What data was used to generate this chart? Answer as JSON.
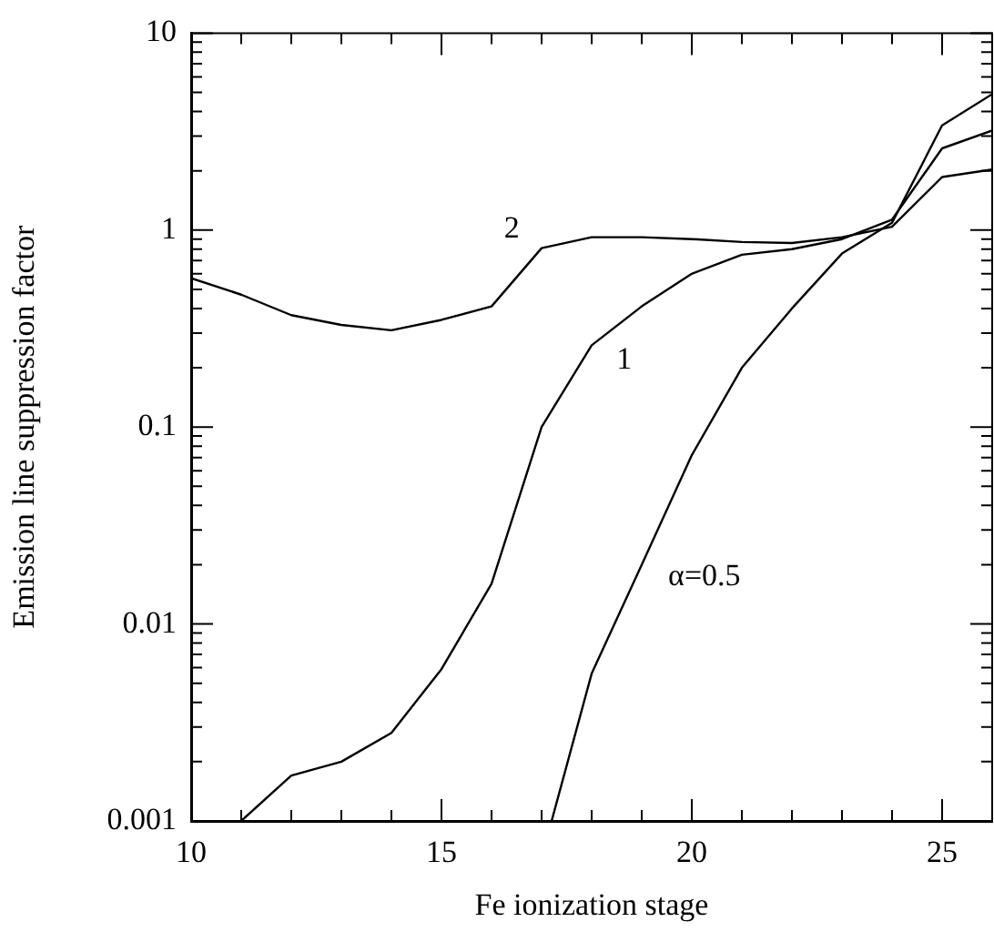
{
  "chart_data": {
    "type": "line",
    "xlabel": "Fe ionization stage",
    "ylabel": "Emission line suppression factor",
    "log": "y",
    "grid": false,
    "legend": false,
    "marker": "none",
    "line_style": "solid",
    "xlim": [
      10,
      26
    ],
    "ylim": [
      0.001,
      10
    ],
    "xticks": [
      10,
      {
        "value": 11,
        "label": null
      },
      {
        "value": 12,
        "label": null
      },
      {
        "value": 13,
        "label": null
      },
      {
        "value": 14,
        "label": null
      },
      15,
      {
        "value": 16,
        "label": null
      },
      {
        "value": 17,
        "label": null
      },
      {
        "value": 18,
        "label": null
      },
      {
        "value": 19,
        "label": null
      },
      20,
      {
        "value": 21,
        "label": null
      },
      {
        "value": 22,
        "label": null
      },
      {
        "value": 23,
        "label": null
      },
      {
        "value": 24,
        "label": null
      },
      25
    ],
    "yticks": [
      0.001,
      {
        "value": 0.002,
        "label": null
      },
      {
        "value": 0.003,
        "label": null
      },
      {
        "value": 0.004,
        "label": null
      },
      {
        "value": 0.005,
        "label": null
      },
      {
        "value": 0.006,
        "label": null
      },
      {
        "value": 0.007,
        "label": null
      },
      {
        "value": 0.008,
        "label": null
      },
      {
        "value": 0.009,
        "label": null
      },
      0.01,
      {
        "value": 0.02,
        "label": null
      },
      {
        "value": 0.03,
        "label": null
      },
      {
        "value": 0.04,
        "label": null
      },
      {
        "value": 0.05,
        "label": null
      },
      {
        "value": 0.06,
        "label": null
      },
      {
        "value": 0.07,
        "label": null
      },
      {
        "value": 0.08,
        "label": null
      },
      {
        "value": 0.09,
        "label": null
      },
      0.1,
      {
        "value": 0.2,
        "label": null
      },
      {
        "value": 0.3,
        "label": null
      },
      {
        "value": 0.4,
        "label": null
      },
      {
        "value": 0.5,
        "label": null
      },
      {
        "value": 0.6,
        "label": null
      },
      {
        "value": 0.7,
        "label": null
      },
      {
        "value": 0.8,
        "label": null
      },
      {
        "value": 0.9,
        "label": null
      },
      1,
      {
        "value": 2,
        "label": null
      },
      {
        "value": 3,
        "label": null
      },
      {
        "value": 4,
        "label": null
      },
      {
        "value": 5,
        "label": null
      },
      {
        "value": 6,
        "label": null
      },
      {
        "value": 7,
        "label": null
      },
      {
        "value": 8,
        "label": null
      },
      {
        "value": 9,
        "label": null
      },
      10
    ],
    "series": [
      {
        "color": "#000000",
        "x": [
          10,
          11,
          12,
          13,
          14,
          15,
          16,
          17,
          18,
          19,
          20,
          21,
          22,
          23,
          24,
          25,
          26
        ],
        "values": [
          0.57,
          0.47,
          0.37,
          0.33,
          0.31,
          0.35,
          0.41,
          0.81,
          0.92,
          0.92,
          0.9,
          0.87,
          0.86,
          0.92,
          1.04,
          1.86,
          2.03
        ]
      },
      {
        "color": "#000000",
        "x": [
          11,
          12,
          13,
          14,
          15,
          16,
          17,
          18,
          19,
          20,
          21,
          22,
          23,
          24,
          25,
          26
        ],
        "values": [
          0.001,
          0.0017,
          0.002,
          0.0028,
          0.0059,
          0.016,
          0.1,
          0.26,
          0.41,
          0.6,
          0.75,
          0.8,
          0.9,
          1.13,
          2.6,
          3.2
        ]
      },
      {
        "color": "#000000",
        "x": [
          17.2,
          18,
          19,
          20,
          21,
          22,
          23,
          24,
          25,
          26
        ],
        "values": [
          0.001,
          0.0056,
          0.02,
          0.072,
          0.2,
          0.4,
          0.76,
          1.09,
          3.4,
          4.9
        ]
      }
    ],
    "annotations": [
      {
        "text": "2",
        "x": 17,
        "y": 0.81
      },
      {
        "text": "1",
        "x": 18,
        "y": 0.26
      },
      {
        "text": "α=0.5",
        "x": 19,
        "y": 0.02
      }
    ]
  }
}
